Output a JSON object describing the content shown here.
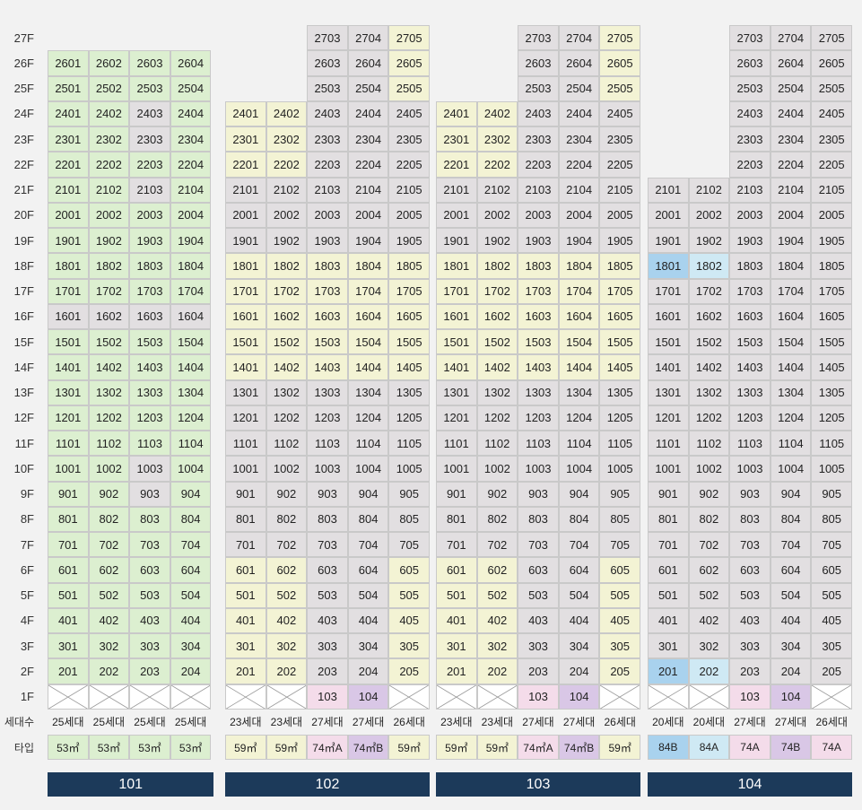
{
  "colors": {
    "green": "#dcefd0",
    "yellow": "#f3f3d4",
    "gray": "#e2dfe1",
    "pink": "#f4dcea",
    "purple": "#d9c7e6",
    "blue": "#a9d2ee",
    "lightblue": "#cfe9f4",
    "navy": "#1c3a5a"
  },
  "floor_labels": [
    "27F",
    "26F",
    "25F",
    "24F",
    "23F",
    "22F",
    "21F",
    "20F",
    "19F",
    "18F",
    "17F",
    "16F",
    "15F",
    "14F",
    "13F",
    "12F",
    "11F",
    "10F",
    "9F",
    "8F",
    "7F",
    "6F",
    "5F",
    "4F",
    "3F",
    "2F",
    "1F"
  ],
  "row_labels": {
    "households": "세대수",
    "type": "타입"
  },
  "buildings": [
    {
      "name": "101",
      "units": 4,
      "top_floor": 26,
      "households": [
        "25세대",
        "25세대",
        "25세대",
        "25세대"
      ],
      "types": [
        "53㎡",
        "53㎡",
        "53㎡",
        "53㎡"
      ],
      "type_colors": [
        "green",
        "green",
        "green",
        "green"
      ],
      "first_floor": [
        "x",
        "x",
        "x",
        "x"
      ],
      "gray_cells": [
        "2403",
        "2303",
        "2103",
        "1601",
        "1602",
        "1603",
        "1604",
        "1003",
        "903"
      ],
      "default_color": "green"
    },
    {
      "name": "102",
      "units": 5,
      "top_floor": 27,
      "partial_top": {
        "floors_above": 24,
        "cols": [
          2,
          3,
          4
        ]
      },
      "households": [
        "23세대",
        "23세대",
        "27세대",
        "27세대",
        "26세대"
      ],
      "types": [
        "59㎡",
        "59㎡",
        "74㎡A",
        "74㎡B",
        "59㎡"
      ],
      "type_colors": [
        "yellow",
        "yellow",
        "pink",
        "purple",
        "yellow"
      ],
      "first_floor": [
        "x",
        "x",
        "103",
        "104",
        "x"
      ],
      "default_color": "gray"
    },
    {
      "name": "103",
      "units": 5,
      "top_floor": 27,
      "partial_top": {
        "floors_above": 24,
        "cols": [
          2,
          3,
          4
        ]
      },
      "households": [
        "23세대",
        "23세대",
        "27세대",
        "27세대",
        "26세대"
      ],
      "types": [
        "59㎡",
        "59㎡",
        "74㎡A",
        "74㎡B",
        "59㎡"
      ],
      "type_colors": [
        "yellow",
        "yellow",
        "pink",
        "purple",
        "yellow"
      ],
      "first_floor": [
        "x",
        "x",
        "103",
        "104",
        "x"
      ],
      "default_color": "gray"
    },
    {
      "name": "104",
      "units": 5,
      "top_floor": 27,
      "partial_top": {
        "floors_above": 21,
        "cols": [
          2,
          3,
          4
        ]
      },
      "households": [
        "20세대",
        "20세대",
        "27세대",
        "27세대",
        "26세대"
      ],
      "types": [
        "84B",
        "84A",
        "74A",
        "74B",
        "74A"
      ],
      "type_colors": [
        "blue",
        "lightblue",
        "pink",
        "purple",
        "pink"
      ],
      "first_floor": [
        "x",
        "x",
        "103",
        "104",
        "x"
      ],
      "default_color": "gray"
    }
  ]
}
